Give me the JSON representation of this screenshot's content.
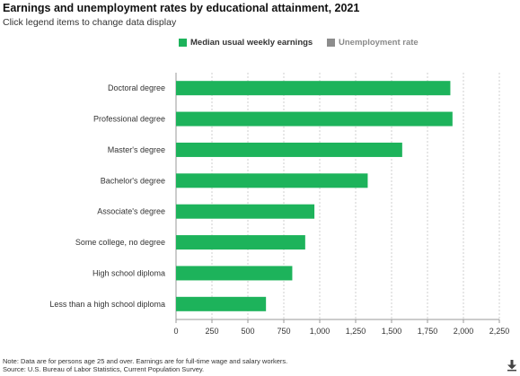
{
  "header": {
    "title": "Earnings and unemployment rates by educational attainment, 2021",
    "subtitle": "Click legend items to change data display"
  },
  "legend": {
    "items": [
      {
        "label": "Median usual weekly earnings",
        "color": "#1db35b",
        "active": true
      },
      {
        "label": "Unemployment rate",
        "color": "#8c8c8c",
        "active": false
      }
    ]
  },
  "chart_data": {
    "type": "bar",
    "orientation": "horizontal",
    "categories": [
      "Doctoral degree",
      "Professional degree",
      "Master's degree",
      "Bachelor's degree",
      "Associate's degree",
      "Some college, no degree",
      "High school diploma",
      "Less than a high school diploma"
    ],
    "series": [
      {
        "name": "Median usual weekly earnings",
        "values": [
          1909,
          1924,
          1574,
          1334,
          963,
          899,
          809,
          626
        ],
        "color": "#1db35b"
      }
    ],
    "xlim": [
      0,
      2250
    ],
    "xticks": [
      0,
      250,
      500,
      750,
      1000,
      1250,
      1500,
      1750,
      2000,
      2250
    ],
    "xtick_labels": [
      "0",
      "250",
      "500",
      "750",
      "1,000",
      "1,250",
      "1,500",
      "1,750",
      "2,000",
      "2,250"
    ],
    "grid": true,
    "legend_position": "top"
  },
  "footer": {
    "note": "Note: Data are for persons age 25 and over. Earnings are for full-time wage and salary workers.",
    "source": "Source: U.S. Bureau of Labor Statistics, Current Population Survey."
  },
  "icons": {
    "download": "download-arrow-icon"
  }
}
